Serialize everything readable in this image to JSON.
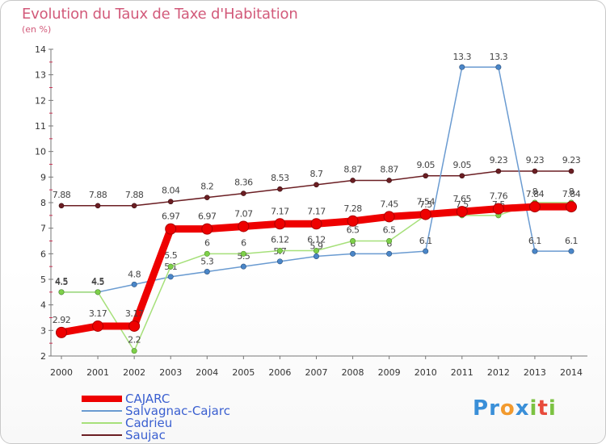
{
  "header": {
    "title": "Evolution du Taux de Taxe d'Habitation",
    "subtitle": "(en %)"
  },
  "logo": {
    "text": "Proxiti"
  },
  "chart_data": {
    "type": "line",
    "title": "Evolution du Taux de Taxe d'Habitation",
    "ylabel": "(en %)",
    "xlabel": "",
    "x": [
      2000,
      2001,
      2002,
      2003,
      2004,
      2005,
      2006,
      2007,
      2008,
      2009,
      2010,
      2011,
      2012,
      2013,
      2014
    ],
    "ylim": [
      2,
      14
    ],
    "yticks": [
      2,
      3,
      4,
      5,
      6,
      7,
      8,
      9,
      10,
      11,
      12,
      13,
      14
    ],
    "grid": false,
    "legend_position": "bottom-left",
    "series": [
      {
        "name": "Saujac",
        "color": "#6b1e23",
        "values": [
          7.88,
          7.88,
          7.88,
          8.04,
          8.2,
          8.36,
          8.53,
          8.7,
          8.87,
          8.87,
          9.05,
          9.05,
          9.23,
          9.23,
          9.23
        ],
        "labels": [
          "7.88",
          "7.88",
          "7.88",
          "8.04",
          "8.2",
          "8.36",
          "8.53",
          "8.7",
          "8.87",
          "8.87",
          "9.05",
          "9.05",
          "9.23",
          "9.23",
          "9.23"
        ]
      },
      {
        "name": "Salvagnac-Cajarc",
        "color": "#6a9bd1",
        "values": [
          4.5,
          4.5,
          4.8,
          5.1,
          5.3,
          5.5,
          5.7,
          5.9,
          6.0,
          6.0,
          6.1,
          13.3,
          13.3,
          6.1,
          6.1
        ],
        "labels": [
          "4.5",
          "4.5",
          "4.8",
          "5.1",
          "5.3",
          "5.5",
          "5.7",
          "5.9",
          "6",
          "6",
          "6.1",
          "13.3",
          "13.3",
          "6.1",
          "6.1"
        ]
      },
      {
        "name": "Cadrieu",
        "color": "#a6e07a",
        "values": [
          4.5,
          4.5,
          2.2,
          5.5,
          6.0,
          6.0,
          6.12,
          6.12,
          6.5,
          6.5,
          7.5,
          7.5,
          7.5,
          8.0,
          8.0
        ],
        "labels": [
          "4.5",
          "4.5",
          "2.2",
          "5.5",
          "6",
          "6",
          "6.12",
          "6.12",
          "6.5",
          "6.5",
          "7.5",
          "7.5",
          "7.5",
          "8",
          "8"
        ]
      },
      {
        "name": "CAJARC",
        "color": "#ee0000",
        "values": [
          2.92,
          3.17,
          3.17,
          6.97,
          6.97,
          7.07,
          7.17,
          7.17,
          7.28,
          7.45,
          7.54,
          7.65,
          7.76,
          7.84,
          7.84
        ],
        "labels": [
          "2.92",
          "3.17",
          "3.17",
          "6.97",
          "6.97",
          "7.07",
          "7.17",
          "7.17",
          "7.28",
          "7.45",
          "7.54",
          "7.65",
          "7.76",
          "7.84",
          "7.84"
        ]
      }
    ],
    "legend": [
      {
        "name": "CAJARC",
        "color": "#ee0000"
      },
      {
        "name": "Salvagnac-Cajarc",
        "color": "#6a9bd1"
      },
      {
        "name": "Cadrieu",
        "color": "#a6e07a"
      },
      {
        "name": "Saujac",
        "color": "#6b1e23"
      }
    ]
  }
}
